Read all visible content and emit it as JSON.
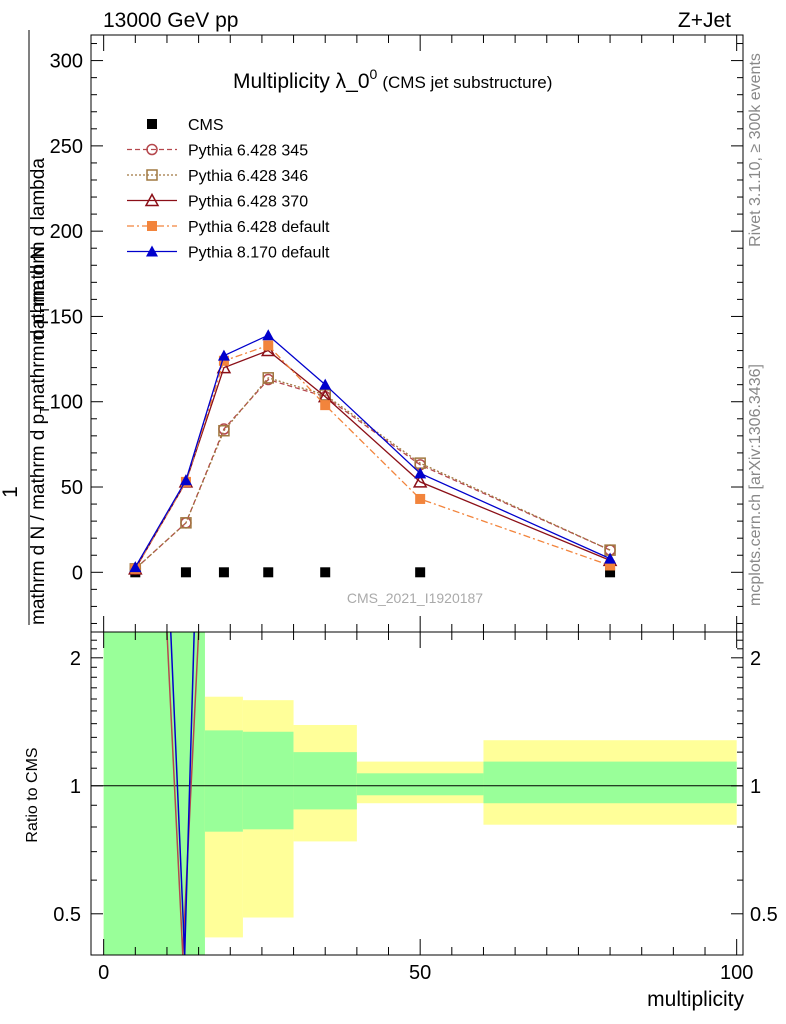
{
  "header": {
    "left": "13000 GeV pp",
    "right": "Z+Jet"
  },
  "side_labels": {
    "rivet": "Rivet 3.1.10, ≥ 300k events",
    "site": "mcplots.cern.ch [arXiv:1306.3436]"
  },
  "chart_data": [
    {
      "type": "line",
      "title": "Multiplicity λ_0",
      "title_sup": "0",
      "subtitle": "(CMS jet substructure)",
      "ylabel_lines": [
        "1",
        "mathrm d N / mathrm d p",
        "T",
        "mathrm d N",
        "mathrm d p",
        "T",
        "mathrm d lambda"
      ],
      "ylabel_text": "1 / (mathrm d N / mathrm d p_T) · mathrm d²N / mathrm d p_T mathrm d lambda",
      "watermark": "CMS_2021_I1920187",
      "ylim": [
        -35,
        315
      ],
      "xlim": [
        -2,
        101
      ],
      "yticks": [
        0,
        50,
        100,
        150,
        200,
        250,
        300
      ],
      "legend_position": "top-left",
      "x": [
        5,
        13,
        19,
        26,
        35,
        50,
        80
      ],
      "series": [
        {
          "name": "CMS",
          "color": "#000000",
          "marker": "square-filled",
          "line": "none",
          "values": [
            0,
            0,
            0,
            0,
            0,
            0,
            0
          ]
        },
        {
          "name": "Pythia 6.428 345",
          "color": "#b5484d",
          "marker": "circle-open",
          "line": "dashed",
          "values": [
            2,
            29,
            84,
            113,
            103,
            63,
            13
          ]
        },
        {
          "name": "Pythia 6.428 346",
          "color": "#a07840",
          "marker": "square-open",
          "line": "dotted",
          "values": [
            2,
            29,
            83,
            114,
            104,
            64,
            13
          ]
        },
        {
          "name": "Pythia 6.428 370",
          "color": "#8b0f17",
          "marker": "triangle-open",
          "line": "solid",
          "values": [
            2,
            53,
            120,
            130,
            103,
            53,
            7
          ]
        },
        {
          "name": "Pythia 6.428 default",
          "color": "#f2843c",
          "marker": "square-filled",
          "line": "dashdot",
          "values": [
            2,
            53,
            124,
            133,
            98,
            43,
            4
          ]
        },
        {
          "name": "Pythia 8.170 default",
          "color": "#0000cc",
          "marker": "triangle-filled",
          "line": "solid",
          "values": [
            3,
            54,
            127,
            139,
            110,
            58,
            8
          ]
        }
      ]
    },
    {
      "type": "area",
      "ylabel": "Ratio to CMS",
      "xlabel": "multiplicity",
      "log_scale_y": true,
      "ylim": [
        0.4,
        2.3
      ],
      "xlim": [
        -2,
        101
      ],
      "yticks": [
        0.5,
        1,
        2
      ],
      "xticks": [
        0,
        50,
        100
      ],
      "bands": [
        {
          "xlo": 0,
          "xhi": 16,
          "inner": [
            0.4,
            2.3
          ],
          "outer": [
            0.4,
            2.3
          ]
        },
        {
          "xlo": 16,
          "xhi": 22,
          "inner": [
            0.78,
            1.35
          ],
          "outer": [
            0.44,
            1.62
          ]
        },
        {
          "xlo": 22,
          "xhi": 30,
          "inner": [
            0.79,
            1.34
          ],
          "outer": [
            0.49,
            1.59
          ]
        },
        {
          "xlo": 30,
          "xhi": 40,
          "inner": [
            0.88,
            1.2
          ],
          "outer": [
            0.74,
            1.39
          ]
        },
        {
          "xlo": 40,
          "xhi": 60,
          "inner": [
            0.95,
            1.07
          ],
          "outer": [
            0.91,
            1.14
          ]
        },
        {
          "xlo": 60,
          "xhi": 100,
          "inner": [
            0.91,
            1.14
          ],
          "outer": [
            0.81,
            1.28
          ]
        }
      ],
      "colors": {
        "inner": "#99ff99",
        "outer": "#ffff99"
      },
      "ratio_lines": [
        {
          "color": "#b5484d",
          "x": [
            10,
            12.5,
            15
          ],
          "y": [
            2.3,
            0.4,
            2.3
          ]
        },
        {
          "color": "#0000cc",
          "x": [
            10.6,
            12.8,
            14.3
          ],
          "y": [
            2.3,
            0.4,
            2.3
          ]
        }
      ]
    }
  ]
}
